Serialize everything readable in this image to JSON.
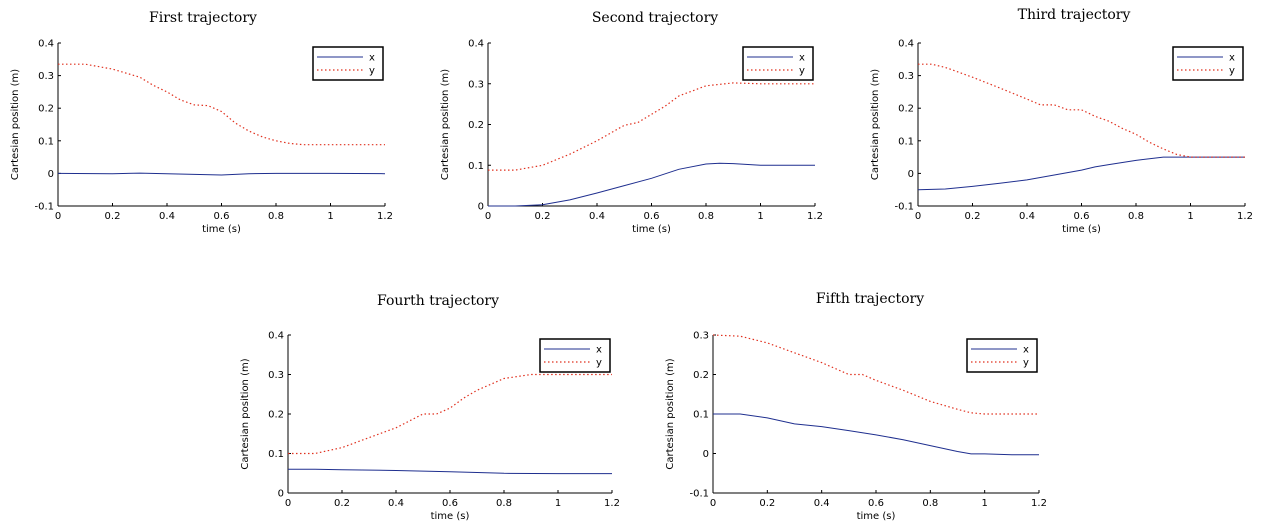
{
  "chart_data": [
    {
      "type": "line",
      "title": "First trajectory",
      "xlabel": "time (s)",
      "ylabel": "Cartesian position (m)",
      "xlim": [
        0,
        1.2
      ],
      "ylim": [
        -0.1,
        0.4
      ],
      "xticks": [
        "0",
        "0.2",
        "0.4",
        "0.6",
        "0.8",
        "1",
        "1.2"
      ],
      "yticks": [
        "-0.1",
        "0",
        "0.1",
        "0.2",
        "0.3",
        "0.4"
      ],
      "grid": false,
      "legend": "top-right",
      "series": [
        {
          "name": "x",
          "color": "#1f2f8f",
          "style": "solid",
          "x": [
            0,
            0.2,
            0.3,
            0.4,
            0.5,
            0.6,
            0.7,
            0.8,
            0.9,
            1.0,
            1.2
          ],
          "y": [
            0.0,
            -0.001,
            0.001,
            -0.001,
            -0.003,
            -0.005,
            -0.001,
            0.0,
            0.0,
            0.0,
            -0.001
          ]
        },
        {
          "name": "y",
          "color": "#e0301e",
          "style": "dotted",
          "x": [
            0,
            0.1,
            0.2,
            0.3,
            0.35,
            0.4,
            0.45,
            0.5,
            0.55,
            0.6,
            0.65,
            0.7,
            0.75,
            0.8,
            0.85,
            0.9,
            1.0,
            1.2
          ],
          "y": [
            0.335,
            0.335,
            0.32,
            0.295,
            0.27,
            0.25,
            0.225,
            0.21,
            0.208,
            0.19,
            0.155,
            0.13,
            0.112,
            0.1,
            0.092,
            0.088,
            0.088,
            0.088
          ]
        }
      ]
    },
    {
      "type": "line",
      "title": "Second trajectory",
      "xlabel": "time (s)",
      "ylabel": "Cartesian position (m)",
      "xlim": [
        0,
        1.2
      ],
      "ylim": [
        0,
        0.4
      ],
      "xticks": [
        "0",
        "0.2",
        "0.4",
        "0.6",
        "0.8",
        "1",
        "1.2"
      ],
      "yticks": [
        "0",
        "0.1",
        "0.2",
        "0.3",
        "0.4"
      ],
      "grid": false,
      "legend": "top-right",
      "series": [
        {
          "name": "x",
          "color": "#1f2f8f",
          "style": "solid",
          "x": [
            0,
            0.1,
            0.2,
            0.3,
            0.4,
            0.5,
            0.6,
            0.7,
            0.8,
            0.85,
            0.9,
            1.0,
            1.1,
            1.2
          ],
          "y": [
            0.0,
            0.0,
            0.003,
            0.015,
            0.032,
            0.05,
            0.068,
            0.09,
            0.103,
            0.105,
            0.104,
            0.1,
            0.1,
            0.1
          ]
        },
        {
          "name": "y",
          "color": "#e0301e",
          "style": "dotted",
          "x": [
            0,
            0.1,
            0.2,
            0.3,
            0.4,
            0.5,
            0.55,
            0.6,
            0.65,
            0.7,
            0.8,
            0.9,
            1.0,
            1.2
          ],
          "y": [
            0.088,
            0.088,
            0.1,
            0.127,
            0.16,
            0.198,
            0.205,
            0.225,
            0.245,
            0.27,
            0.295,
            0.302,
            0.3,
            0.3
          ]
        }
      ]
    },
    {
      "type": "line",
      "title": "Third trajectory",
      "xlabel": "time (s)",
      "ylabel": "Cartesian position (m)",
      "xlim": [
        0,
        1.2
      ],
      "ylim": [
        -0.1,
        0.4
      ],
      "xticks": [
        "0",
        "0.2",
        "0.4",
        "0.6",
        "0.8",
        "1",
        "1.2"
      ],
      "yticks": [
        "-0.1",
        "0",
        "0.1",
        "0.2",
        "0.3",
        "0.4"
      ],
      "grid": false,
      "legend": "top-right",
      "series": [
        {
          "name": "x",
          "color": "#1f2f8f",
          "style": "solid",
          "x": [
            0,
            0.1,
            0.2,
            0.3,
            0.4,
            0.5,
            0.6,
            0.65,
            0.7,
            0.8,
            0.9,
            0.95,
            1.0,
            1.2
          ],
          "y": [
            -0.05,
            -0.048,
            -0.04,
            -0.03,
            -0.02,
            -0.005,
            0.01,
            0.02,
            0.027,
            0.04,
            0.05,
            0.05,
            0.05,
            0.05
          ]
        },
        {
          "name": "y",
          "color": "#e0301e",
          "style": "dotted",
          "x": [
            0,
            0.05,
            0.1,
            0.2,
            0.3,
            0.4,
            0.45,
            0.5,
            0.55,
            0.6,
            0.65,
            0.7,
            0.75,
            0.8,
            0.85,
            0.9,
            0.95,
            1.0,
            1.2
          ],
          "y": [
            0.335,
            0.335,
            0.325,
            0.295,
            0.262,
            0.228,
            0.21,
            0.21,
            0.195,
            0.195,
            0.175,
            0.16,
            0.138,
            0.12,
            0.095,
            0.075,
            0.058,
            0.05,
            0.05
          ]
        }
      ]
    },
    {
      "type": "line",
      "title": "Fourth trajectory",
      "xlabel": "time (s)",
      "ylabel": "Cartesian position (m)",
      "xlim": [
        0,
        1.2
      ],
      "ylim": [
        0,
        0.4
      ],
      "xticks": [
        "0",
        "0.2",
        "0.4",
        "0.6",
        "0.8",
        "1",
        "1.2"
      ],
      "yticks": [
        "0",
        "0.1",
        "0.2",
        "0.3",
        "0.4"
      ],
      "grid": false,
      "legend": "top-right",
      "series": [
        {
          "name": "x",
          "color": "#1f2f8f",
          "style": "solid",
          "x": [
            0,
            0.1,
            0.2,
            0.4,
            0.6,
            0.8,
            1.0,
            1.2
          ],
          "y": [
            0.06,
            0.06,
            0.059,
            0.057,
            0.054,
            0.05,
            0.049,
            0.049
          ]
        },
        {
          "name": "y",
          "color": "#e0301e",
          "style": "dotted",
          "x": [
            0,
            0.1,
            0.2,
            0.3,
            0.4,
            0.5,
            0.55,
            0.6,
            0.65,
            0.7,
            0.8,
            0.9,
            1.0,
            1.2
          ],
          "y": [
            0.1,
            0.1,
            0.115,
            0.14,
            0.165,
            0.2,
            0.2,
            0.215,
            0.24,
            0.26,
            0.29,
            0.3,
            0.3,
            0.3
          ]
        }
      ]
    },
    {
      "type": "line",
      "title": "Fifth trajectory",
      "xlabel": "time (s)",
      "ylabel": "Cartesian position (m)",
      "xlim": [
        0,
        1.2
      ],
      "ylim": [
        -0.1,
        0.3
      ],
      "xticks": [
        "0",
        "0.2",
        "0.4",
        "0.6",
        "0.8",
        "1",
        "1.2"
      ],
      "yticks": [
        "-0.1",
        "0",
        "0.1",
        "0.2",
        "0.3"
      ],
      "grid": false,
      "legend": "top-right",
      "series": [
        {
          "name": "x",
          "color": "#1f2f8f",
          "style": "solid",
          "x": [
            0,
            0.1,
            0.2,
            0.3,
            0.4,
            0.5,
            0.6,
            0.7,
            0.8,
            0.9,
            0.95,
            1.0,
            1.1,
            1.2
          ],
          "y": [
            0.1,
            0.1,
            0.09,
            0.075,
            0.068,
            0.058,
            0.047,
            0.035,
            0.02,
            0.005,
            -0.001,
            -0.001,
            -0.003,
            -0.003
          ]
        },
        {
          "name": "y",
          "color": "#e0301e",
          "style": "dotted",
          "x": [
            0,
            0.1,
            0.2,
            0.3,
            0.4,
            0.5,
            0.55,
            0.6,
            0.7,
            0.8,
            0.9,
            0.95,
            1.0,
            1.2
          ],
          "y": [
            0.3,
            0.297,
            0.28,
            0.255,
            0.23,
            0.2,
            0.2,
            0.185,
            0.16,
            0.132,
            0.112,
            0.103,
            0.1,
            0.1
          ]
        }
      ]
    }
  ]
}
